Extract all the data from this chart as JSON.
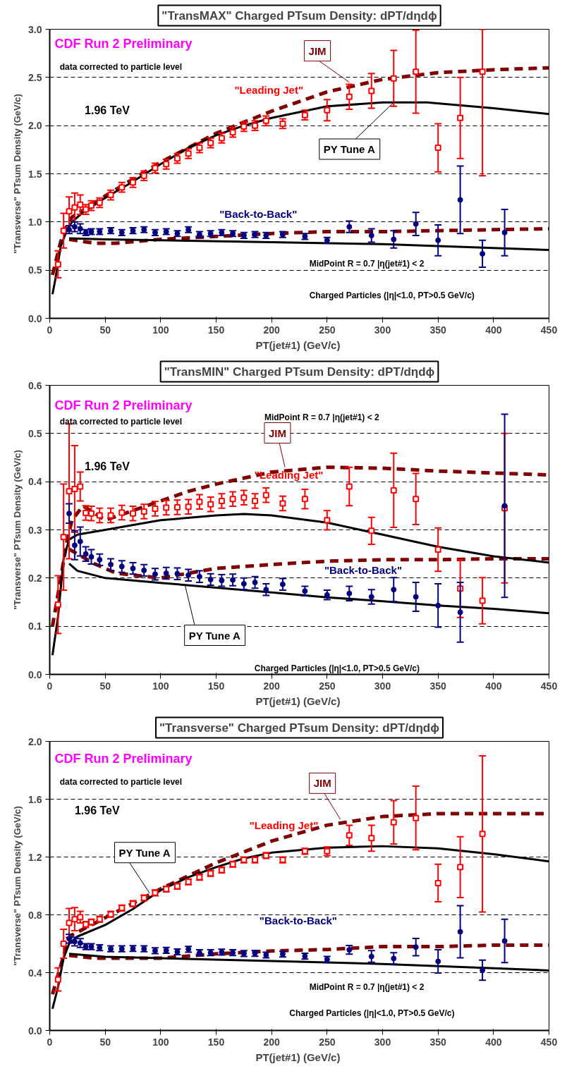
{
  "chart_data": [
    {
      "type": "scatter",
      "title": "\"TransMAX\" Charged PTsum Density: dPT/dηdϕ",
      "xlabel": "PT(jet#1)  (GeV/c)",
      "ylabel": "\"Transverse\" PTsum Density (GeV/c)",
      "xlim": [
        0,
        450
      ],
      "xticks": [
        0,
        50,
        100,
        150,
        200,
        250,
        300,
        350,
        400,
        450
      ],
      "ylim": [
        0,
        3
      ],
      "yticks": [
        {
          "value": 0,
          "label": "0.0"
        },
        0.5,
        {
          "value": 1,
          "label": "1.0"
        },
        1.5,
        {
          "value": 2,
          "label": "2.0"
        },
        2.5,
        {
          "value": 3,
          "label": "3.0"
        }
      ],
      "grid": "y",
      "annotations": [
        "CDF Run 2 Preliminary",
        "data corrected to particle level",
        "1.96 TeV",
        "MidPoint R = 0.7 |η(jet#1) < 2",
        "Charged Particles (|η|<1.0, PT>0.5 GeV/c)",
        {
          "text": "JIM",
          "x": 270,
          "y": 2.45
        },
        {
          "text": "PY Tune A",
          "x": 310,
          "y": 2.24
        }
      ],
      "series": [
        {
          "type": "line",
          "color": "#800000",
          "line_style": "dashed",
          "x": [
            2.5,
            10,
            15,
            20,
            30,
            50,
            100,
            150,
            200,
            250,
            300,
            350,
            400,
            450
          ],
          "values": [
            0.45,
            0.8,
            0.95,
            1.05,
            1.12,
            1.27,
            1.62,
            1.92,
            2.15,
            2.35,
            2.48,
            2.55,
            2.58,
            2.6
          ]
        },
        {
          "type": "line",
          "color": "#800000",
          "line_style": "dashed",
          "x": [
            17.5,
            40,
            60,
            100,
            150,
            200,
            250,
            300,
            350,
            400,
            450
          ],
          "values": [
            0.82,
            0.78,
            0.78,
            0.82,
            0.85,
            0.88,
            0.9,
            0.9,
            0.91,
            0.92,
            0.93
          ]
        },
        {
          "type": "line",
          "color": "#000000",
          "line_style": "solid",
          "x": [
            2.5,
            5,
            10,
            15,
            20,
            30,
            50,
            75,
            100,
            125,
            150,
            175,
            200,
            250,
            300,
            340,
            400,
            450
          ],
          "values": [
            0.25,
            0.4,
            0.75,
            0.9,
            1.0,
            1.1,
            1.25,
            1.42,
            1.6,
            1.77,
            1.9,
            2.0,
            2.08,
            2.2,
            2.24,
            2.24,
            2.18,
            2.12
          ]
        },
        {
          "type": "line",
          "color": "#000000",
          "line_style": "solid",
          "x": [
            17.5,
            50,
            100,
            200,
            300,
            400,
            450
          ],
          "values": [
            0.83,
            0.82,
            0.81,
            0.79,
            0.77,
            0.73,
            0.71
          ]
        },
        {
          "name": "\"Leading Jet\"",
          "type": "scatter",
          "marker": "square",
          "color": "#ff0000",
          "x": [
            7.5,
            12.5,
            17.5,
            22.5,
            27.5,
            32.5,
            37.5,
            45,
            55,
            65,
            75,
            85,
            95,
            105,
            115,
            125,
            135,
            145,
            155,
            165,
            175,
            185,
            195,
            210,
            230,
            250,
            270,
            290,
            310,
            330,
            350,
            370,
            390
          ],
          "values": [
            0.56,
            0.91,
            1.11,
            1.15,
            1.18,
            1.13,
            1.17,
            1.2,
            1.28,
            1.36,
            1.41,
            1.48,
            1.56,
            1.6,
            1.66,
            1.71,
            1.77,
            1.82,
            1.87,
            1.93,
            1.99,
            2.0,
            2.05,
            2.02,
            2.11,
            2.16,
            2.3,
            2.36,
            2.49,
            2.56,
            1.77,
            2.08,
            2.56
          ],
          "errors": [
            0.14,
            0.18,
            0.15,
            0.15,
            0.1,
            0.05,
            0.05,
            0.05,
            0.05,
            0.05,
            0.05,
            0.05,
            0.05,
            0.05,
            0.05,
            0.05,
            0.05,
            0.05,
            0.05,
            0.05,
            0.05,
            0.05,
            0.05,
            0.05,
            0.05,
            0.11,
            0.13,
            0.18,
            0.29,
            0.43,
            0.25,
            0.42,
            [
              1.48,
              3.0
            ]
          ]
        },
        {
          "name": "\"Back-to-Back\"",
          "type": "scatter",
          "marker": "circle",
          "color": "#000080",
          "x": [
            17.5,
            22.5,
            27.5,
            32.5,
            37.5,
            45,
            55,
            65,
            75,
            85,
            95,
            105,
            115,
            125,
            135,
            145,
            155,
            165,
            175,
            185,
            195,
            210,
            230,
            250,
            270,
            290,
            310,
            330,
            350,
            370,
            390,
            410
          ],
          "values": [
            0.92,
            0.95,
            0.93,
            0.89,
            0.9,
            0.9,
            0.91,
            0.89,
            0.91,
            0.92,
            0.89,
            0.9,
            0.88,
            0.92,
            0.87,
            0.88,
            0.89,
            0.88,
            0.86,
            0.87,
            0.86,
            0.87,
            0.85,
            0.81,
            0.95,
            0.86,
            0.82,
            0.98,
            0.81,
            1.23,
            0.67,
            0.89
          ],
          "errors": [
            0.04,
            0.05,
            0.05,
            0.03,
            0.03,
            0.03,
            0.03,
            0.03,
            0.03,
            0.03,
            0.03,
            0.03,
            0.03,
            0.03,
            0.03,
            0.03,
            0.03,
            0.03,
            0.03,
            0.03,
            0.03,
            0.03,
            0.03,
            0.03,
            0.06,
            0.07,
            0.09,
            0.12,
            0.16,
            0.35,
            0.14,
            0.24
          ]
        }
      ]
    },
    {
      "type": "scatter",
      "title": "\"TransMIN\" Charged PTsum Density: dPT/dηdϕ",
      "xlabel": "PT(jet#1)  (GeV/c)",
      "ylabel": "\"Transverse\" PTsum Density (GeV/c)",
      "xlim": [
        0,
        450
      ],
      "xticks": [
        0,
        50,
        100,
        150,
        200,
        250,
        300,
        350,
        400,
        450
      ],
      "ylim": [
        0,
        0.6
      ],
      "yticks": [
        {
          "value": 0,
          "label": "0.0"
        },
        0.1,
        0.2,
        0.3,
        0.4,
        0.5,
        0.6
      ],
      "grid": "y",
      "annotations": [
        "CDF Run 2 Preliminary",
        "data corrected to particle level",
        "1.96 TeV",
        "MidPoint R = 0.7 |η(jet#1) < 2",
        "Charged Particles (|η|<1.0, PT>0.5 GeV/c)",
        {
          "text": "JIM",
          "x": 212,
          "y": 0.43
        },
        {
          "text": "PY Tune A",
          "x": 122,
          "y": 0.185
        }
      ],
      "series": [
        {
          "type": "line",
          "color": "#800000",
          "line_style": "dashed",
          "x": [
            2.5,
            10,
            15,
            20,
            30,
            50,
            75,
            100,
            125,
            150,
            200,
            250,
            300,
            350,
            400,
            450
          ],
          "values": [
            0.1,
            0.2,
            0.27,
            0.32,
            0.35,
            0.32,
            0.34,
            0.36,
            0.38,
            0.395,
            0.42,
            0.43,
            0.428,
            0.422,
            0.418,
            0.414
          ]
        },
        {
          "type": "line",
          "color": "#800000",
          "line_style": "dashed",
          "x": [
            17.5,
            40,
            60,
            80,
            100,
            150,
            200,
            250,
            300,
            350,
            400,
            450
          ],
          "values": [
            0.26,
            0.23,
            0.21,
            0.205,
            0.2,
            0.22,
            0.228,
            0.235,
            0.238,
            0.238,
            0.24,
            0.24
          ]
        },
        {
          "type": "line",
          "color": "#000000",
          "line_style": "solid",
          "x": [
            2.5,
            7.5,
            12.5,
            17.5,
            25,
            50,
            100,
            150,
            175,
            200,
            250,
            300,
            350,
            400,
            450
          ],
          "values": [
            0.04,
            0.12,
            0.24,
            0.28,
            0.29,
            0.3,
            0.32,
            0.33,
            0.333,
            0.33,
            0.315,
            0.29,
            0.265,
            0.245,
            0.232
          ]
        },
        {
          "type": "line",
          "color": "#000000",
          "line_style": "solid",
          "x": [
            17.5,
            25,
            50,
            100,
            150,
            200,
            250,
            300,
            350,
            400,
            450
          ],
          "values": [
            0.23,
            0.215,
            0.2,
            0.19,
            0.18,
            0.17,
            0.16,
            0.152,
            0.143,
            0.136,
            0.127
          ]
        },
        {
          "name": "\"Leading Jet\"",
          "type": "scatter",
          "marker": "square",
          "color": "#ff0000",
          "x": [
            7.5,
            12.5,
            17.5,
            22.5,
            27.5,
            32.5,
            37.5,
            45,
            55,
            65,
            75,
            85,
            95,
            105,
            115,
            125,
            135,
            145,
            155,
            165,
            175,
            185,
            195,
            210,
            230,
            250,
            270,
            290,
            310,
            330,
            350,
            370,
            390,
            410
          ],
          "values": [
            0.145,
            0.285,
            0.38,
            0.385,
            0.39,
            0.335,
            0.334,
            0.33,
            0.33,
            0.336,
            0.334,
            0.338,
            0.344,
            0.346,
            0.347,
            0.348,
            0.358,
            0.353,
            0.36,
            0.364,
            0.367,
            0.36,
            0.372,
            0.355,
            0.364,
            0.32,
            0.39,
            0.298,
            0.382,
            0.364,
            0.259,
            0.178,
            0.153,
            0.345
          ],
          "errors": [
            0.06,
            0.11,
            0.14,
            0.09,
            0.03,
            0.015,
            0.015,
            0.015,
            0.015,
            0.015,
            0.015,
            0.015,
            0.015,
            0.015,
            0.015,
            0.015,
            0.015,
            0.015,
            0.015,
            0.015,
            0.015,
            0.015,
            0.015,
            0.015,
            0.02,
            0.02,
            0.04,
            0.028,
            0.077,
            0.053,
            0.045,
            0.06,
            0.048,
            0.155
          ]
        },
        {
          "name": "\"Back-to-Back\"",
          "type": "scatter",
          "marker": "circle",
          "color": "#000080",
          "x": [
            17.5,
            22.5,
            27.5,
            32.5,
            37.5,
            45,
            55,
            65,
            75,
            85,
            95,
            105,
            115,
            125,
            135,
            145,
            155,
            165,
            175,
            185,
            195,
            210,
            230,
            250,
            270,
            290,
            310,
            330,
            350,
            370,
            390,
            410
          ],
          "values": [
            0.334,
            0.268,
            0.276,
            0.25,
            0.244,
            0.238,
            0.228,
            0.224,
            0.22,
            0.216,
            0.208,
            0.21,
            0.209,
            0.206,
            0.203,
            0.197,
            0.195,
            0.196,
            0.188,
            0.191,
            0.176,
            0.187,
            0.173,
            0.165,
            0.168,
            0.161,
            0.176,
            0.161,
            0.143,
            0.129,
            null,
            0.35
          ],
          "errors": [
            0.02,
            0.03,
            0.03,
            0.015,
            0.015,
            0.012,
            0.012,
            0.012,
            0.012,
            0.012,
            0.012,
            0.012,
            0.012,
            0.012,
            0.012,
            0.012,
            0.012,
            0.012,
            0.012,
            0.012,
            0.012,
            0.012,
            0.01,
            0.01,
            0.015,
            0.015,
            0.025,
            0.03,
            0.045,
            0.062,
            null,
            0.19
          ]
        }
      ]
    },
    {
      "type": "scatter",
      "title": "\"Transverse\" Charged PTsum Density: dPT/dηdϕ",
      "xlabel": "PT(jet#1)  (GeV/c)",
      "ylabel": "\"Transverse\" PTsum Density (GeV/c)",
      "xlim": [
        0,
        450
      ],
      "xticks": [
        0,
        50,
        100,
        150,
        200,
        250,
        300,
        350,
        400,
        450
      ],
      "ylim": [
        0,
        2
      ],
      "yticks": [
        {
          "value": 0,
          "label": "0.0"
        },
        0.4,
        0.8,
        1.2,
        1.6,
        {
          "value": 2,
          "label": "2.0"
        }
      ],
      "grid": "y",
      "annotations": [
        "CDF Run 2 Preliminary",
        "data corrected to particle level",
        "1.96 TeV",
        "MidPoint R = 0.7 |η(jet#1) < 2",
        "Charged Particles (|η|<1.0, PT>0.5 GeV/c)",
        {
          "text": "JIM",
          "x": 262,
          "y": 1.46
        },
        {
          "text": "PY Tune A",
          "x": 90,
          "y": 0.95
        }
      ],
      "series": [
        {
          "type": "line",
          "color": "#800000",
          "line_style": "dashed",
          "x": [
            2.5,
            10,
            15,
            20,
            30,
            50,
            100,
            150,
            200,
            250,
            300,
            350,
            400,
            450
          ],
          "values": [
            0.25,
            0.45,
            0.58,
            0.66,
            0.7,
            0.78,
            0.98,
            1.16,
            1.31,
            1.42,
            1.48,
            1.5,
            1.5,
            1.5
          ]
        },
        {
          "type": "line",
          "color": "#800000",
          "line_style": "dashed",
          "x": [
            17.5,
            40,
            60,
            100,
            150,
            200,
            250,
            300,
            350,
            400,
            450
          ],
          "values": [
            0.52,
            0.5,
            0.5,
            0.5,
            0.53,
            0.55,
            0.56,
            0.58,
            0.58,
            0.59,
            0.59
          ]
        },
        {
          "type": "line",
          "color": "#000000",
          "line_style": "solid",
          "x": [
            2.5,
            7.5,
            12.5,
            17.5,
            25,
            50,
            75,
            100,
            125,
            150,
            175,
            200,
            250,
            300,
            350,
            400,
            450
          ],
          "values": [
            0.15,
            0.3,
            0.5,
            0.6,
            0.65,
            0.73,
            0.84,
            0.97,
            1.06,
            1.13,
            1.19,
            1.23,
            1.265,
            1.275,
            1.26,
            1.22,
            1.17
          ]
        },
        {
          "type": "line",
          "color": "#000000",
          "line_style": "solid",
          "x": [
            17.5,
            50,
            100,
            200,
            300,
            400,
            450
          ],
          "values": [
            0.53,
            0.51,
            0.5,
            0.48,
            0.46,
            0.43,
            0.415
          ]
        },
        {
          "name": "\"Leading Jet\"",
          "type": "scatter",
          "marker": "square",
          "color": "#ff0000",
          "x": [
            7.5,
            12.5,
            17.5,
            22.5,
            27.5,
            32.5,
            37.5,
            45,
            55,
            65,
            75,
            85,
            95,
            105,
            115,
            125,
            135,
            145,
            155,
            165,
            175,
            185,
            195,
            210,
            230,
            250,
            270,
            290,
            310,
            330,
            350,
            370,
            390
          ],
          "values": [
            0.353,
            0.6,
            0.744,
            0.77,
            0.784,
            0.734,
            0.75,
            0.77,
            0.804,
            0.847,
            0.877,
            0.917,
            0.952,
            0.978,
            0.998,
            1.028,
            1.06,
            1.087,
            1.11,
            1.15,
            1.18,
            1.18,
            1.21,
            1.18,
            1.24,
            1.24,
            1.35,
            1.33,
            1.44,
            1.47,
            1.02,
            1.13,
            1.36
          ],
          "errors": [
            0.08,
            0.1,
            0.1,
            0.08,
            0.04,
            0.02,
            0.02,
            0.02,
            0.02,
            0.02,
            0.02,
            0.02,
            0.02,
            0.02,
            0.02,
            0.02,
            0.02,
            0.02,
            0.02,
            0.02,
            0.02,
            0.02,
            0.02,
            0.02,
            0.02,
            0.03,
            0.07,
            0.09,
            0.15,
            0.22,
            0.13,
            0.21,
            0.54
          ]
        },
        {
          "name": "\"Back-to-Back\"",
          "type": "scatter",
          "marker": "circle",
          "color": "#000080",
          "x": [
            17.5,
            22.5,
            27.5,
            32.5,
            37.5,
            45,
            55,
            65,
            75,
            85,
            95,
            105,
            115,
            125,
            135,
            145,
            155,
            165,
            175,
            185,
            195,
            210,
            230,
            250,
            270,
            290,
            310,
            330,
            350,
            370,
            390,
            410
          ],
          "values": [
            0.635,
            0.615,
            0.605,
            0.58,
            0.58,
            0.573,
            0.565,
            0.565,
            0.567,
            0.565,
            0.552,
            0.554,
            0.544,
            0.562,
            0.538,
            0.538,
            0.542,
            0.538,
            0.532,
            0.534,
            0.522,
            0.528,
            0.514,
            0.492,
            0.558,
            0.512,
            0.498,
            0.577,
            0.478,
            0.683,
            0.417,
            0.619
          ],
          "errors": [
            0.03,
            0.03,
            0.03,
            0.02,
            0.02,
            0.02,
            0.02,
            0.02,
            0.02,
            0.02,
            0.02,
            0.02,
            0.02,
            0.02,
            0.02,
            0.02,
            0.02,
            0.02,
            0.02,
            0.02,
            0.02,
            0.02,
            0.02,
            0.02,
            0.03,
            0.04,
            0.04,
            0.06,
            0.08,
            0.18,
            0.07,
            0.15
          ]
        }
      ]
    }
  ]
}
